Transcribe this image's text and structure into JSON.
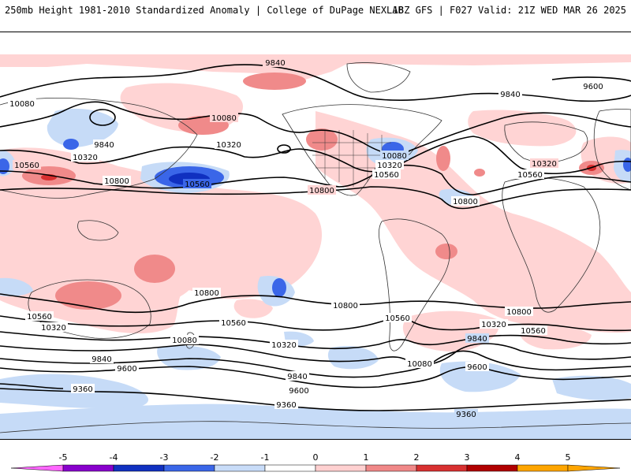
{
  "header": {
    "title_left": "250mb Height 1981-2010 Standardized Anomaly | College of DuPage NEXLAB",
    "title_right": "18Z GFS | F027 Valid: 21Z WED MAR 26 2025"
  },
  "contour_labels": [
    "9840",
    "9600",
    "10080",
    "10080",
    "9840",
    "10320",
    "10560",
    "10800",
    "10320",
    "10560",
    "10800",
    "10320",
    "10080",
    "10560",
    "9840",
    "10320",
    "10560",
    "10800",
    "10800",
    "10800",
    "10560",
    "10320",
    "10560",
    "10080",
    "9840",
    "9600",
    "10800",
    "10560",
    "10320",
    "9840",
    "9600",
    "10080",
    "9840",
    "9600",
    "9360",
    "9360",
    "9360",
    "10800",
    "10560",
    "10320",
    "10560",
    "10080",
    "10800",
    "10560",
    "10320",
    "9840",
    "9600"
  ],
  "colorbar": {
    "ticks": [
      "-5",
      "-4",
      "-3",
      "-2",
      "-1",
      "0",
      "1",
      "2",
      "3",
      "4",
      "5"
    ],
    "colors": [
      "#ff66ff",
      "#8800cc",
      "#1030c0",
      "#3a66e8",
      "#c8dcf8",
      "#ffffff",
      "#ffd0d0",
      "#f08888",
      "#d83030",
      "#b00000",
      "#ffa500"
    ]
  }
}
